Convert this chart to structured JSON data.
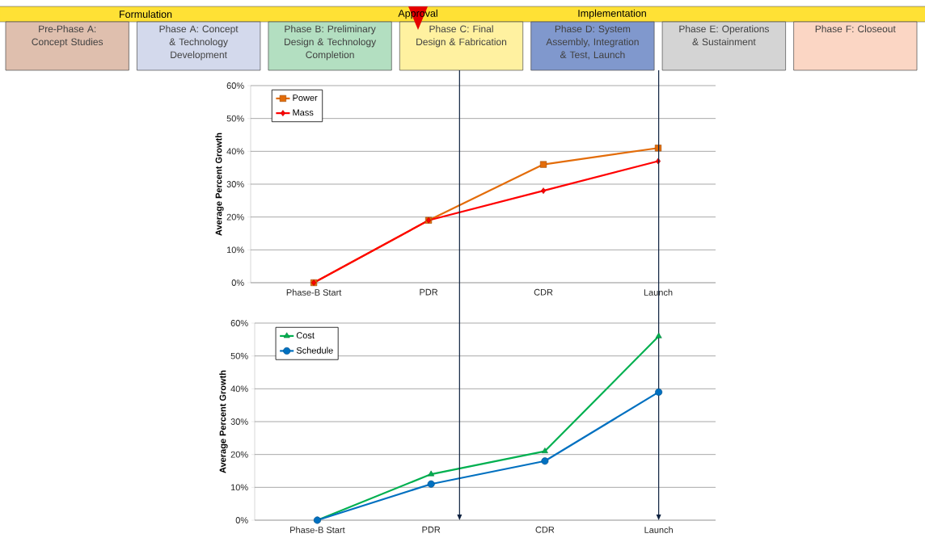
{
  "chart_data": [
    {
      "type": "other",
      "categories": [
        "Pre-Phase A: Concept Studies",
        "Phase A: Concept & Technology Development",
        "Phase B: Preliminary Design & Technology Completion",
        "Phase C: Final Design & Fabrication",
        "Phase D: System Assembly, Integration & Test, Launch",
        "Phase E: Operations & Sustainment",
        "Phase F: Closeout"
      ],
      "colors": [
        "#dfbfae",
        "#d3d9ec",
        "#b3dfc1",
        "#fff1a0",
        "#8098cd",
        "#d4d4d4",
        "#fbd6c4"
      ],
      "annotations": [
        "Formulation",
        "Approval",
        "Implementation"
      ]
    },
    {
      "type": "line",
      "ylabel": "Average Percent Growth",
      "categories": [
        "Phase-B Start",
        "PDR",
        "CDR",
        "Launch"
      ],
      "ylim": [
        0,
        60
      ],
      "yticks": [
        {
          "value": 0,
          "label": "0%"
        },
        {
          "value": 10,
          "label": "10%"
        },
        {
          "value": 20,
          "label": "20%"
        },
        {
          "value": 30,
          "label": "30%"
        },
        {
          "value": 40,
          "label": "40%"
        },
        {
          "value": 50,
          "label": "50%"
        },
        {
          "value": 60,
          "label": "60%"
        }
      ],
      "grid": "y",
      "legend": "top left",
      "line_style": "solid",
      "series": [
        {
          "name": "Power",
          "color": "#e36c09",
          "marker": "square",
          "values": [
            0,
            19,
            36,
            41
          ]
        },
        {
          "name": "Mass",
          "color": "#ff0000",
          "marker": "diamond",
          "values": [
            0,
            19,
            28,
            37
          ]
        }
      ]
    },
    {
      "type": "line",
      "ylabel": "Average Percent Growth",
      "categories": [
        "Phase-B Start",
        "PDR",
        "CDR",
        "Launch"
      ],
      "ylim": [
        0,
        60
      ],
      "yticks": [
        {
          "value": 0,
          "label": "0%"
        },
        {
          "value": 10,
          "label": "10%"
        },
        {
          "value": 20,
          "label": "20%"
        },
        {
          "value": 30,
          "label": "30%"
        },
        {
          "value": 40,
          "label": "40%"
        },
        {
          "value": 50,
          "label": "50%"
        },
        {
          "value": 60,
          "label": "60%"
        }
      ],
      "grid": "y",
      "legend": "top left",
      "line_style": "solid",
      "series": [
        {
          "name": "Cost",
          "color": "#00b050",
          "marker": "triangle",
          "values": [
            0,
            14,
            21,
            56
          ]
        },
        {
          "name": "Schedule",
          "color": "#0070c0",
          "marker": "circle",
          "values": [
            0,
            11,
            18,
            39
          ]
        }
      ],
      "ref_lines": [
        {
          "axis": "x",
          "value": "Launch",
          "color": "#0f2240"
        }
      ]
    }
  ]
}
